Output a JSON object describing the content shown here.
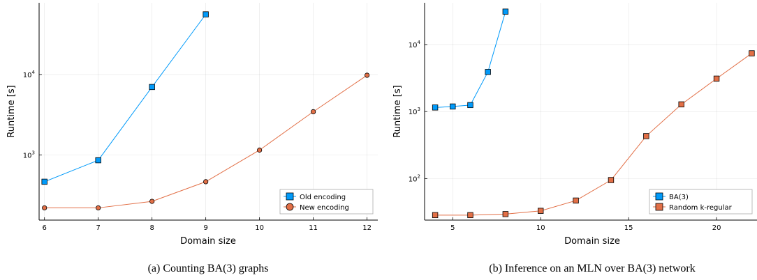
{
  "captions": [
    "(a) Counting BA(3) graphs",
    "(b) Inference on an MLN over BA(3) network"
  ],
  "colors": {
    "blue": "#009AFA",
    "orange": "#E26F46"
  },
  "chart_data": [
    {
      "type": "line",
      "title": "",
      "caption": "(a) Counting BA(3) graphs",
      "xlabel": "Domain size",
      "ylabel": "Runtime [s]",
      "xlim": [
        5.9,
        12.2
      ],
      "ylim": [
        155,
        78000
      ],
      "yscale": "log",
      "xticks": [
        6,
        7,
        8,
        9,
        10,
        11,
        12
      ],
      "yticks": [
        1000,
        10000
      ],
      "ytick_labels": [
        "10^3",
        "10^4"
      ],
      "grid": true,
      "legend_position": "bottom-right",
      "series": [
        {
          "name": "Old encoding",
          "marker": "square",
          "color": "#009AFA",
          "x": [
            6,
            7,
            8,
            9
          ],
          "y": [
            465,
            860,
            7000,
            56000
          ]
        },
        {
          "name": "New encoding",
          "marker": "circle",
          "color": "#E26F46",
          "x": [
            6,
            7,
            8,
            9,
            10,
            11,
            12
          ],
          "y": [
            220,
            220,
            265,
            465,
            1150,
            3450,
            9800
          ]
        }
      ]
    },
    {
      "type": "line",
      "title": "",
      "caption": "(b) Inference on an MLN over BA(3) network",
      "xlabel": "Domain size",
      "ylabel": "Runtime [s]",
      "xlim": [
        3.4,
        22.3
      ],
      "ylim": [
        24,
        42000
      ],
      "yscale": "log",
      "xticks": [
        5,
        10,
        15,
        20
      ],
      "yticks": [
        100,
        1000,
        10000
      ],
      "ytick_labels": [
        "10^2",
        "10^3",
        "10^4"
      ],
      "grid": true,
      "legend_position": "bottom-right",
      "series": [
        {
          "name": "BA(3)",
          "marker": "square",
          "color": "#009AFA",
          "x": [
            4,
            5,
            6,
            7,
            8
          ],
          "y": [
            1150,
            1190,
            1250,
            3900,
            31000
          ]
        },
        {
          "name": "Random k-regular",
          "marker": "square",
          "color": "#E26F46",
          "x": [
            4,
            6,
            8,
            10,
            12,
            14,
            16,
            18,
            20,
            22
          ],
          "y": [
            28.5,
            28.5,
            29.5,
            33,
            47,
            95,
            430,
            1280,
            3100,
            7400
          ]
        }
      ]
    }
  ]
}
